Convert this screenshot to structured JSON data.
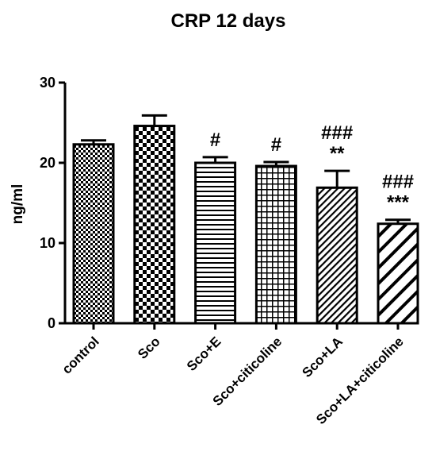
{
  "chart_data": {
    "type": "bar",
    "title": "CRP 12 days",
    "xlabel": "",
    "ylabel": "ng/ml",
    "ylim": [
      0,
      30
    ],
    "yticks": [
      "0",
      "10",
      "20",
      "30"
    ],
    "grid": false,
    "categories": [
      "control",
      "Sco",
      "Sco+E",
      "Sco+citicoline",
      "Sco+LA",
      "Sco+LA+citicoline"
    ],
    "values": [
      22.3,
      24.6,
      20.0,
      19.6,
      16.9,
      12.4
    ],
    "errors": [
      0.5,
      1.3,
      0.7,
      0.5,
      2.1,
      0.5
    ],
    "patterns": [
      "fine-checker",
      "coarse-checker",
      "horizontal-lines",
      "grid",
      "diagonal-dense",
      "diagonal-wide"
    ],
    "annotations": [
      {
        "category": "Sco+E",
        "lines": [
          "#"
        ]
      },
      {
        "category": "Sco+citicoline",
        "lines": [
          "#"
        ]
      },
      {
        "category": "Sco+LA",
        "lines": [
          "###",
          "**"
        ]
      },
      {
        "category": "Sco+LA+citicoline",
        "lines": [
          "###",
          "***"
        ]
      }
    ],
    "color": "#000000"
  }
}
